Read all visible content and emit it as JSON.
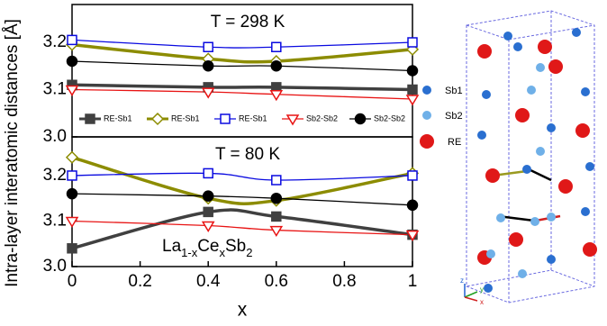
{
  "chart_data": [
    {
      "type": "line",
      "annotation": "T = 298 K",
      "legend": true,
      "legend_position": "bottom",
      "x": [
        0,
        0.4,
        0.6,
        1
      ],
      "xlim": [
        0,
        1
      ],
      "ylim": [
        3.0,
        3.28
      ],
      "yticks": [
        {
          "value": 3.0,
          "label": "3.0"
        },
        3.1,
        3.2
      ],
      "series": [
        {
          "name": "RE-Sb1",
          "color": "#404040",
          "marker": "square",
          "filled": true,
          "values": [
            3.11,
            3.105,
            3.105,
            3.1
          ]
        },
        {
          "name": "RE-Sb1",
          "color": "#8c8c00",
          "marker": "diamond",
          "filled": false,
          "values": [
            3.195,
            3.165,
            3.16,
            3.185
          ]
        },
        {
          "name": "RE-Sb1",
          "color": "#0a0ae0",
          "marker": "square",
          "filled": false,
          "values": [
            3.205,
            3.19,
            3.19,
            3.2
          ]
        },
        {
          "name": "Sb2-Sb2",
          "color": "#e81414",
          "marker": "triangle-down",
          "filled": false,
          "values": [
            3.1,
            3.095,
            3.09,
            3.08
          ]
        },
        {
          "name": "Sb2-Sb2",
          "color": "#000000",
          "marker": "circle",
          "filled": true,
          "values": [
            3.16,
            3.15,
            3.15,
            3.14
          ]
        }
      ]
    },
    {
      "type": "line",
      "annotation": "T = 80 K",
      "formula": [
        {
          "text": "La"
        },
        {
          "text": "1-x",
          "sub": true
        },
        {
          "text": "Ce"
        },
        {
          "text": "x",
          "sub": true
        },
        {
          "text": "Sb"
        },
        {
          "text": "2",
          "sub": true
        }
      ],
      "x": [
        0,
        0.4,
        0.6,
        1
      ],
      "xlim": [
        0,
        1
      ],
      "ylim": [
        3.0,
        3.285
      ],
      "xticks": [
        0,
        0.2,
        0.4,
        0.6,
        0.8,
        1
      ],
      "yticks": [
        {
          "value": 3.0,
          "label": "3.0"
        },
        3.1,
        3.2
      ],
      "xlabel": "x",
      "ylabel": "Intra-layer interatomic distances [Å]",
      "series": [
        {
          "color": "#404040",
          "marker": "square",
          "filled": true,
          "values": [
            3.04,
            3.12,
            3.11,
            3.07
          ]
        },
        {
          "color": "#8c8c00",
          "marker": "diamond",
          "filled": false,
          "values": [
            3.24,
            3.15,
            3.145,
            3.205
          ]
        },
        {
          "color": "#0a0ae0",
          "marker": "square",
          "filled": false,
          "values": [
            3.2,
            3.205,
            3.19,
            3.2
          ]
        },
        {
          "color": "#e81414",
          "marker": "triangle-down",
          "filled": false,
          "values": [
            3.1,
            3.09,
            3.08,
            3.07
          ]
        },
        {
          "color": "#000000",
          "marker": "circle",
          "filled": true,
          "values": [
            3.16,
            3.155,
            3.15,
            3.135
          ]
        }
      ]
    }
  ],
  "structure": {
    "legend": [
      "Sb1",
      "Sb2",
      "RE"
    ],
    "axes": [
      "z",
      "y",
      "x"
    ]
  }
}
